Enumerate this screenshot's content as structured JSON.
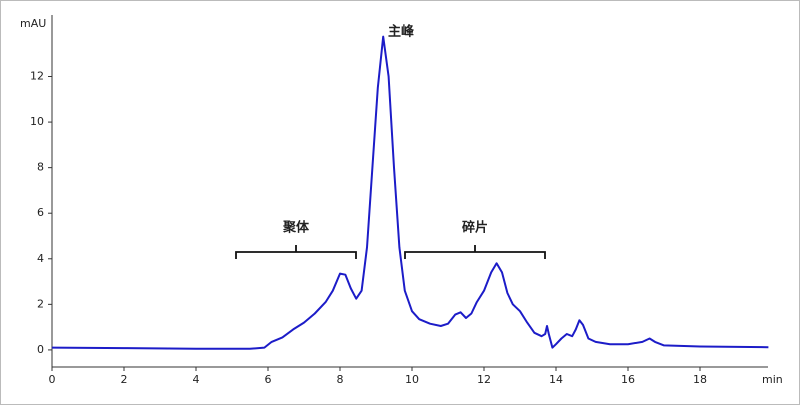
{
  "chart_data": {
    "type": "line",
    "x_label": "min",
    "y_label": "mAU",
    "annotations": [
      "主峰",
      "聚体",
      "碎片"
    ],
    "x": [
      0,
      2,
      4,
      5.5,
      5.9,
      6.1,
      6.4,
      6.7,
      7.0,
      7.3,
      7.6,
      7.8,
      8.0,
      8.15,
      8.3,
      8.45,
      8.6,
      8.75,
      8.9,
      9.05,
      9.2,
      9.35,
      9.5,
      9.65,
      9.8,
      10.0,
      10.2,
      10.5,
      10.8,
      11.0,
      11.2,
      11.35,
      11.5,
      11.65,
      11.8,
      12.0,
      12.2,
      12.35,
      12.5,
      12.65,
      12.8,
      13.0,
      13.2,
      13.4,
      13.6,
      13.7,
      13.75,
      13.8,
      13.9,
      14.0,
      14.15,
      14.3,
      14.45,
      14.55,
      14.65,
      14.75,
      14.9,
      15.1,
      15.5,
      16.0,
      16.4,
      16.6,
      16.75,
      17.0,
      18,
      19.9
    ],
    "values": [
      0.1,
      0.08,
      0.05,
      0.05,
      0.1,
      0.35,
      0.55,
      0.9,
      1.2,
      1.6,
      2.1,
      2.6,
      3.35,
      3.3,
      2.7,
      2.25,
      2.6,
      4.5,
      8,
      11.5,
      13.75,
      12,
      8,
      4.5,
      2.6,
      1.7,
      1.35,
      1.15,
      1.05,
      1.15,
      1.55,
      1.65,
      1.4,
      1.6,
      2.1,
      2.6,
      3.4,
      3.8,
      3.4,
      2.5,
      2.0,
      1.7,
      1.2,
      0.75,
      0.6,
      0.7,
      1.05,
      0.7,
      0.1,
      0.25,
      0.5,
      0.7,
      0.6,
      0.9,
      1.3,
      1.1,
      0.5,
      0.35,
      0.25,
      0.25,
      0.35,
      0.5,
      0.35,
      0.2,
      0.15,
      0.12
    ],
    "color": "#1c1cc8",
    "xlim": [
      0,
      20
    ],
    "ylim": [
      -0.75,
      14.7
    ],
    "xticks": [
      0,
      2,
      4,
      6,
      8,
      10,
      12,
      14,
      16,
      18
    ],
    "yticks": [
      0,
      2,
      4,
      6,
      8,
      10,
      12
    ]
  }
}
